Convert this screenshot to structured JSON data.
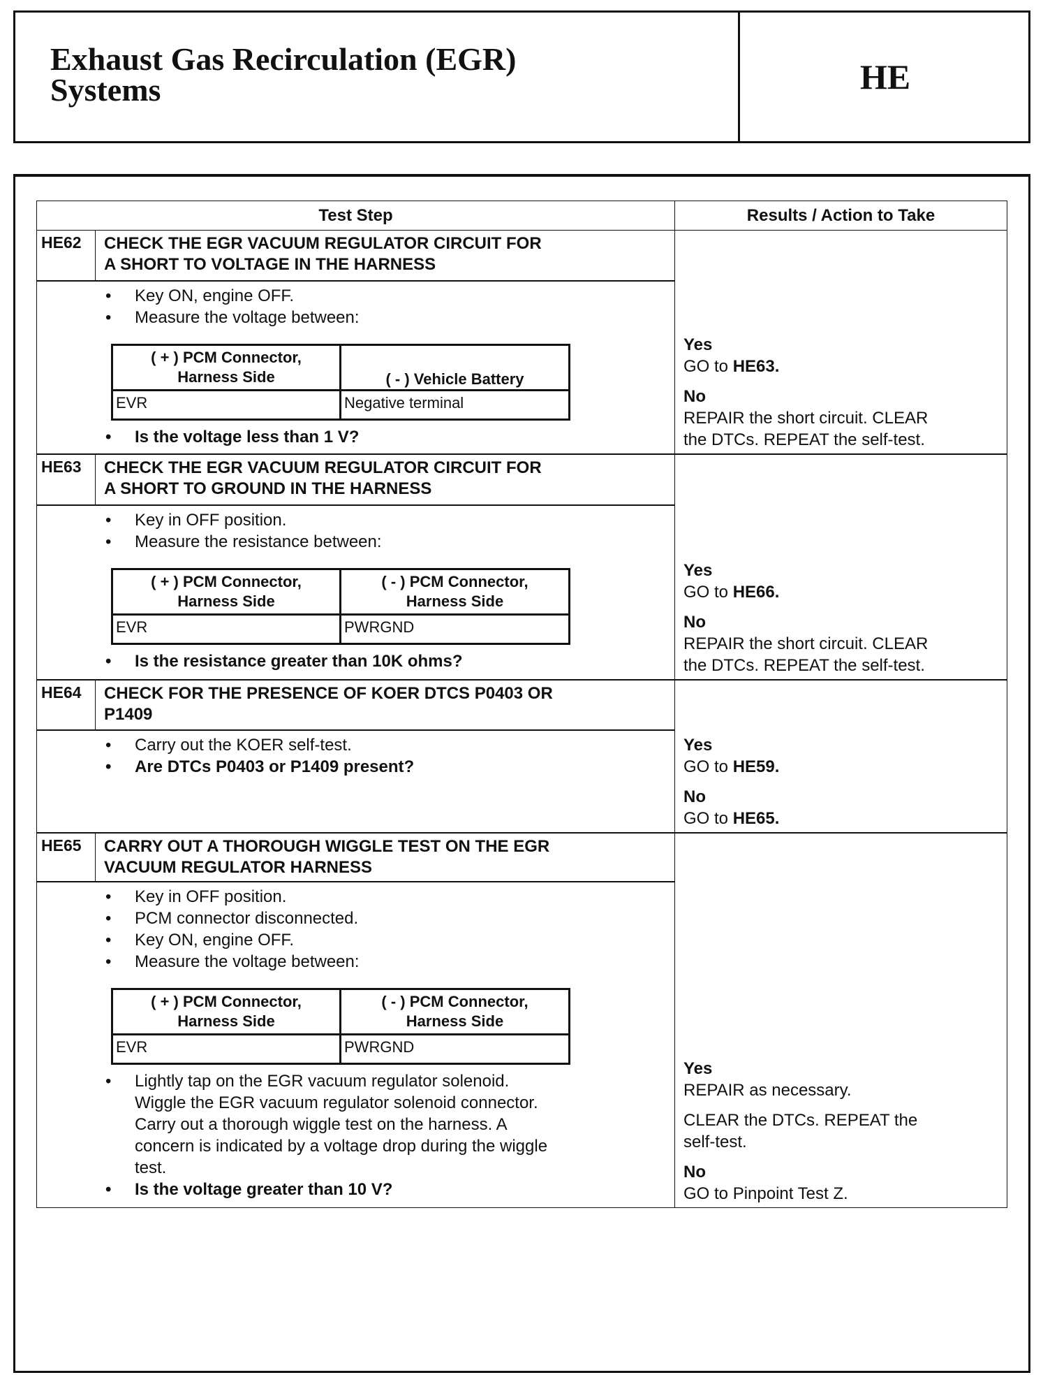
{
  "header": {
    "title_line1": "Exhaust Gas Recirculation (EGR)",
    "title_line2": "Systems",
    "code": "HE"
  },
  "table": {
    "col_test_step": "Test Step",
    "col_results": "Results / Action to Take"
  },
  "steps": [
    {
      "id": "HE62",
      "title1": "CHECK THE EGR VACUUM REGULATOR CIRCUIT FOR",
      "title2": "A SHORT TO VOLTAGE IN THE HARNESS",
      "bullets": [
        "Key ON, engine OFF.",
        "Measure the voltage between:"
      ],
      "meas": {
        "h1a": "( + ) PCM Connector,",
        "h1b": "Harness Side",
        "h2a": "",
        "h2b": "( - ) Vehicle Battery",
        "c1": "EVR",
        "c2": "Negative terminal"
      },
      "question": "Is the voltage less than 1 V?",
      "yes": "Yes",
      "yes_text": "GO to",
      "yes_ref": "HE63.",
      "no": "No",
      "no_text1": "REPAIR the short circuit. CLEAR",
      "no_text2": "the DTCs. REPEAT the self-test."
    },
    {
      "id": "HE63",
      "title1": "CHECK THE EGR VACUUM REGULATOR CIRCUIT FOR",
      "title2": "A SHORT TO GROUND IN THE HARNESS",
      "bullets": [
        "Key in OFF position.",
        "Measure the resistance between:"
      ],
      "meas": {
        "h1a": "( + ) PCM Connector,",
        "h1b": "Harness Side",
        "h2a": "( - ) PCM Connector,",
        "h2b": "Harness Side",
        "c1": "EVR",
        "c2": "PWRGND"
      },
      "question": "Is the resistance greater than 10K ohms?",
      "yes": "Yes",
      "yes_text": "GO to",
      "yes_ref": "HE66.",
      "no": "No",
      "no_text1": "REPAIR the short circuit. CLEAR",
      "no_text2": "the DTCs. REPEAT the self-test."
    },
    {
      "id": "HE64",
      "title1": "CHECK FOR THE PRESENCE OF KOER DTCS P0403 OR",
      "title2": "P1409",
      "bullets": [
        "Carry out the KOER self-test."
      ],
      "question": "Are DTCs P0403 or P1409 present?",
      "yes": "Yes",
      "yes_text": "GO to",
      "yes_ref": "HE59.",
      "no": "No",
      "no_text": "GO to",
      "no_ref": "HE65."
    },
    {
      "id": "HE65",
      "title1": "CARRY OUT A THOROUGH WIGGLE TEST ON THE EGR",
      "title2": "VACUUM REGULATOR HARNESS",
      "bullets": [
        "Key in OFF position.",
        "PCM connector disconnected.",
        "Key ON, engine OFF.",
        "Measure the voltage between:"
      ],
      "meas": {
        "h1a": "( + ) PCM Connector,",
        "h1b": "Harness Side",
        "h2a": "( - ) PCM Connector,",
        "h2b": "Harness Side",
        "c1": "EVR",
        "c2": "PWRGND"
      },
      "para": [
        "Lightly tap on the EGR vacuum regulator solenoid.",
        "Wiggle the EGR vacuum regulator solenoid connector.",
        "Carry out a thorough wiggle test on the  harness. A",
        "concern is indicated by a voltage drop during the wiggle",
        "test."
      ],
      "question": "Is the voltage greater than 10 V?",
      "yes": "Yes",
      "yes_text1": "REPAIR as necessary.",
      "yes_text2": "CLEAR the DTCs. REPEAT the",
      "yes_text3": "self-test.",
      "no": "No",
      "no_text": "GO to Pinpoint Test Z."
    }
  ]
}
